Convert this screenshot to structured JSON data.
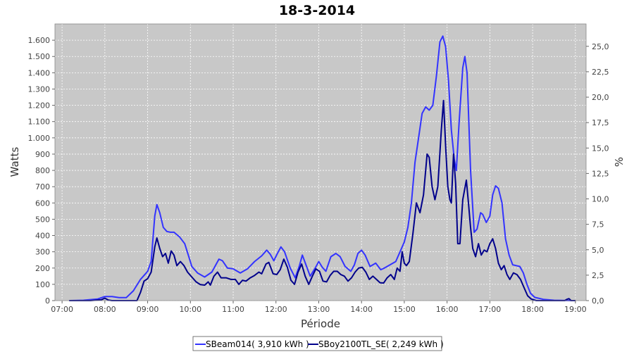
{
  "chart_data": {
    "type": "line",
    "title": "18-3-2014",
    "xlabel": "Période",
    "ylabel": "Watts",
    "y2label": "%",
    "x_ticks": [
      "07:00",
      "08:00",
      "09:00",
      "10:00",
      "11:00",
      "12:00",
      "13:00",
      "14:00",
      "15:00",
      "16:00",
      "17:00",
      "18:00",
      "19:00"
    ],
    "xlim": [
      "06:50",
      "19:15"
    ],
    "ylim": [
      0,
      1700
    ],
    "y_ticks": [
      0,
      100,
      200,
      300,
      400,
      500,
      600,
      700,
      800,
      900,
      1000,
      1100,
      1200,
      1300,
      1400,
      1500,
      1600
    ],
    "y_tick_labels": [
      "0",
      "100",
      "200",
      "300",
      "400",
      "500",
      "600",
      "700",
      "800",
      "900",
      "1.000",
      "1.100",
      "1.200",
      "1.300",
      "1.400",
      "1.500",
      "1.600"
    ],
    "y2lim": [
      0,
      27.2
    ],
    "y2_tick_labels": [
      "0,0",
      "2,5",
      "5,0",
      "7,5",
      "10,0",
      "12,5",
      "15,0",
      "17,5",
      "20,0",
      "22,5",
      "25,0"
    ],
    "grid": true,
    "legend_position": "bottom",
    "series": [
      {
        "name": "SBeam014( 3,910 kWh )",
        "color": "#3333ff",
        "points": [
          [
            "07:10",
            0
          ],
          [
            "07:30",
            2
          ],
          [
            "07:50",
            10
          ],
          [
            "08:00",
            25
          ],
          [
            "08:10",
            25
          ],
          [
            "08:20",
            18
          ],
          [
            "08:30",
            18
          ],
          [
            "08:40",
            60
          ],
          [
            "08:50",
            130
          ],
          [
            "09:00",
            180
          ],
          [
            "09:05",
            240
          ],
          [
            "09:10",
            520
          ],
          [
            "09:13",
            590
          ],
          [
            "09:17",
            540
          ],
          [
            "09:22",
            450
          ],
          [
            "09:27",
            425
          ],
          [
            "09:32",
            420
          ],
          [
            "09:37",
            420
          ],
          [
            "09:45",
            390
          ],
          [
            "09:52",
            350
          ],
          [
            "09:57",
            280
          ],
          [
            "10:02",
            210
          ],
          [
            "10:10",
            170
          ],
          [
            "10:20",
            145
          ],
          [
            "10:30",
            175
          ],
          [
            "10:40",
            255
          ],
          [
            "10:45",
            245
          ],
          [
            "10:52",
            200
          ],
          [
            "11:00",
            195
          ],
          [
            "11:10",
            170
          ],
          [
            "11:20",
            195
          ],
          [
            "11:30",
            240
          ],
          [
            "11:40",
            275
          ],
          [
            "11:47",
            310
          ],
          [
            "11:52",
            285
          ],
          [
            "11:57",
            245
          ],
          [
            "12:02",
            290
          ],
          [
            "12:07",
            330
          ],
          [
            "12:12",
            300
          ],
          [
            "12:20",
            200
          ],
          [
            "12:27",
            140
          ],
          [
            "12:33",
            215
          ],
          [
            "12:37",
            280
          ],
          [
            "12:42",
            220
          ],
          [
            "12:48",
            150
          ],
          [
            "12:55",
            200
          ],
          [
            "13:00",
            240
          ],
          [
            "13:05",
            205
          ],
          [
            "13:10",
            180
          ],
          [
            "13:17",
            270
          ],
          [
            "13:24",
            290
          ],
          [
            "13:30",
            270
          ],
          [
            "13:37",
            210
          ],
          [
            "13:45",
            180
          ],
          [
            "13:50",
            220
          ],
          [
            "13:55",
            290
          ],
          [
            "14:00",
            310
          ],
          [
            "14:05",
            280
          ],
          [
            "14:12",
            210
          ],
          [
            "14:20",
            230
          ],
          [
            "14:27",
            190
          ],
          [
            "14:32",
            200
          ],
          [
            "14:40",
            220
          ],
          [
            "14:48",
            240
          ],
          [
            "14:55",
            310
          ],
          [
            "15:00",
            360
          ],
          [
            "15:05",
            450
          ],
          [
            "15:10",
            600
          ],
          [
            "15:15",
            850
          ],
          [
            "15:20",
            1000
          ],
          [
            "15:25",
            1150
          ],
          [
            "15:30",
            1190
          ],
          [
            "15:35",
            1170
          ],
          [
            "15:40",
            1200
          ],
          [
            "15:45",
            1380
          ],
          [
            "15:50",
            1590
          ],
          [
            "15:54",
            1625
          ],
          [
            "15:58",
            1560
          ],
          [
            "16:02",
            1350
          ],
          [
            "16:06",
            1050
          ],
          [
            "16:10",
            870
          ],
          [
            "16:13",
            800
          ],
          [
            "16:17",
            1100
          ],
          [
            "16:22",
            1430
          ],
          [
            "16:25",
            1500
          ],
          [
            "16:28",
            1400
          ],
          [
            "16:33",
            800
          ],
          [
            "16:38",
            420
          ],
          [
            "16:42",
            440
          ],
          [
            "16:47",
            540
          ],
          [
            "16:50",
            530
          ],
          [
            "16:55",
            480
          ],
          [
            "17:00",
            520
          ],
          [
            "17:04",
            650
          ],
          [
            "17:08",
            705
          ],
          [
            "17:12",
            690
          ],
          [
            "17:17",
            600
          ],
          [
            "17:22",
            380
          ],
          [
            "17:27",
            280
          ],
          [
            "17:32",
            220
          ],
          [
            "17:37",
            215
          ],
          [
            "17:42",
            210
          ],
          [
            "17:47",
            170
          ],
          [
            "17:52",
            100
          ],
          [
            "17:57",
            45
          ],
          [
            "18:03",
            20
          ],
          [
            "18:15",
            8
          ],
          [
            "18:30",
            2
          ],
          [
            "18:55",
            0
          ],
          [
            "19:00",
            0
          ]
        ]
      },
      {
        "name": "SBoy2100TL_SE( 2,249 kWh )",
        "color": "#00008b",
        "points": [
          [
            "07:10",
            0
          ],
          [
            "07:40",
            0
          ],
          [
            "07:55",
            5
          ],
          [
            "08:00",
            15
          ],
          [
            "08:05",
            3
          ],
          [
            "08:10",
            0
          ],
          [
            "08:45",
            0
          ],
          [
            "08:50",
            50
          ],
          [
            "08:55",
            120
          ],
          [
            "09:00",
            135
          ],
          [
            "09:05",
            175
          ],
          [
            "09:10",
            330
          ],
          [
            "09:13",
            385
          ],
          [
            "09:17",
            320
          ],
          [
            "09:21",
            270
          ],
          [
            "09:25",
            290
          ],
          [
            "09:29",
            230
          ],
          [
            "09:33",
            305
          ],
          [
            "09:37",
            280
          ],
          [
            "09:41",
            215
          ],
          [
            "09:46",
            240
          ],
          [
            "09:51",
            215
          ],
          [
            "09:56",
            175
          ],
          [
            "10:02",
            145
          ],
          [
            "10:08",
            115
          ],
          [
            "10:14",
            98
          ],
          [
            "10:20",
            95
          ],
          [
            "10:25",
            115
          ],
          [
            "10:28",
            95
          ],
          [
            "10:33",
            150
          ],
          [
            "10:38",
            175
          ],
          [
            "10:43",
            140
          ],
          [
            "10:50",
            140
          ],
          [
            "10:57",
            130
          ],
          [
            "11:03",
            130
          ],
          [
            "11:08",
            100
          ],
          [
            "11:13",
            125
          ],
          [
            "11:18",
            120
          ],
          [
            "11:24",
            140
          ],
          [
            "11:30",
            155
          ],
          [
            "11:36",
            175
          ],
          [
            "11:40",
            165
          ],
          [
            "11:46",
            225
          ],
          [
            "11:50",
            235
          ],
          [
            "11:56",
            165
          ],
          [
            "12:01",
            160
          ],
          [
            "12:06",
            190
          ],
          [
            "12:11",
            255
          ],
          [
            "12:16",
            205
          ],
          [
            "12:21",
            125
          ],
          [
            "12:26",
            100
          ],
          [
            "12:31",
            175
          ],
          [
            "12:36",
            225
          ],
          [
            "12:41",
            150
          ],
          [
            "12:46",
            100
          ],
          [
            "12:51",
            150
          ],
          [
            "12:56",
            195
          ],
          [
            "13:01",
            180
          ],
          [
            "13:06",
            120
          ],
          [
            "13:11",
            115
          ],
          [
            "13:16",
            155
          ],
          [
            "13:21",
            180
          ],
          [
            "13:26",
            180
          ],
          [
            "13:31",
            160
          ],
          [
            "13:36",
            150
          ],
          [
            "13:41",
            120
          ],
          [
            "13:46",
            140
          ],
          [
            "13:51",
            175
          ],
          [
            "13:56",
            200
          ],
          [
            "14:01",
            205
          ],
          [
            "14:06",
            175
          ],
          [
            "14:11",
            130
          ],
          [
            "14:16",
            150
          ],
          [
            "14:21",
            130
          ],
          [
            "14:26",
            110
          ],
          [
            "14:31",
            108
          ],
          [
            "14:36",
            140
          ],
          [
            "14:41",
            160
          ],
          [
            "14:46",
            130
          ],
          [
            "14:50",
            200
          ],
          [
            "14:54",
            180
          ],
          [
            "14:57",
            300
          ],
          [
            "15:00",
            230
          ],
          [
            "15:03",
            215
          ],
          [
            "15:07",
            240
          ],
          [
            "15:12",
            410
          ],
          [
            "15:17",
            600
          ],
          [
            "15:22",
            540
          ],
          [
            "15:27",
            650
          ],
          [
            "15:32",
            900
          ],
          [
            "15:35",
            880
          ],
          [
            "15:39",
            700
          ],
          [
            "15:43",
            620
          ],
          [
            "15:47",
            700
          ],
          [
            "15:52",
            1050
          ],
          [
            "15:55",
            1230
          ],
          [
            "15:58",
            950
          ],
          [
            "16:01",
            700
          ],
          [
            "16:04",
            620
          ],
          [
            "16:06",
            600
          ],
          [
            "16:09",
            900
          ],
          [
            "16:12",
            720
          ],
          [
            "16:15",
            350
          ],
          [
            "16:18",
            350
          ],
          [
            "16:22",
            620
          ],
          [
            "16:27",
            740
          ],
          [
            "16:30",
            600
          ],
          [
            "16:33",
            450
          ],
          [
            "16:36",
            320
          ],
          [
            "16:40",
            270
          ],
          [
            "16:44",
            350
          ],
          [
            "16:48",
            280
          ],
          [
            "16:52",
            310
          ],
          [
            "16:56",
            300
          ],
          [
            "17:00",
            350
          ],
          [
            "17:04",
            380
          ],
          [
            "17:08",
            320
          ],
          [
            "17:12",
            230
          ],
          [
            "17:16",
            190
          ],
          [
            "17:20",
            215
          ],
          [
            "17:24",
            160
          ],
          [
            "17:28",
            130
          ],
          [
            "17:33",
            170
          ],
          [
            "17:38",
            160
          ],
          [
            "17:43",
            130
          ],
          [
            "17:48",
            80
          ],
          [
            "17:53",
            30
          ],
          [
            "17:58",
            10
          ],
          [
            "18:05",
            0
          ],
          [
            "18:30",
            0
          ],
          [
            "18:45",
            0
          ],
          [
            "18:48",
            8
          ],
          [
            "18:51",
            12
          ],
          [
            "18:54",
            0
          ],
          [
            "19:00",
            0
          ]
        ]
      }
    ]
  }
}
